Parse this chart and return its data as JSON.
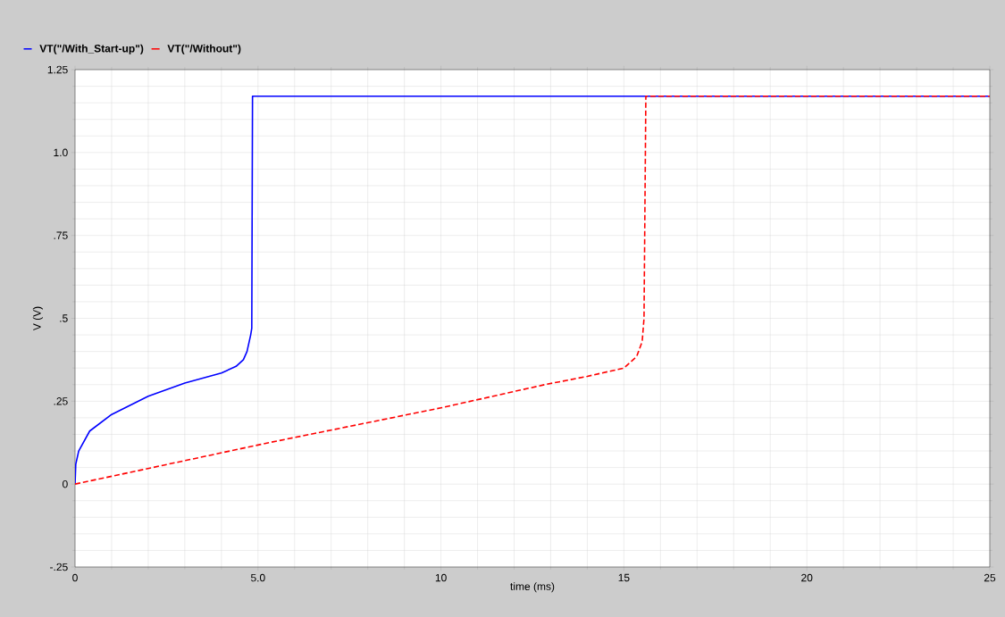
{
  "chart_data": {
    "type": "line",
    "xlabel": "time (ms)",
    "ylabel": "V (V)",
    "xlim": [
      0,
      25
    ],
    "ylim": [
      -0.25,
      1.25
    ],
    "xticks": [
      0,
      {
        "value": 5,
        "label": "5.0"
      },
      10,
      15,
      20,
      25
    ],
    "yticks": [
      {
        "value": -0.25,
        "label": "-.25"
      },
      0,
      {
        "value": 0.25,
        "label": ".25"
      },
      {
        "value": 0.5,
        "label": ".5"
      },
      {
        "value": 0.75,
        "label": ".75"
      },
      {
        "value": 1,
        "label": "1.0"
      },
      1.25
    ],
    "grid": true,
    "legend": "top left",
    "marker": "none",
    "series": [
      {
        "name": "VT(\"/With_Start-up\")",
        "color": "#0000ff",
        "line_style": "solid",
        "x": [
          0,
          0.02,
          0.1,
          0.4,
          1,
          2,
          3,
          4,
          4.4,
          4.6,
          4.7,
          4.8,
          4.83,
          4.85,
          25
        ],
        "values": [
          0,
          0.06,
          0.1,
          0.16,
          0.21,
          0.265,
          0.305,
          0.335,
          0.355,
          0.375,
          0.4,
          0.45,
          0.47,
          1.17,
          1.17
        ]
      },
      {
        "name": "VT(\"/Without\")",
        "color": "#ff0000",
        "line_style": "dashed",
        "x": [
          0,
          5.3,
          10,
          12.84,
          14,
          15,
          15.35,
          15.5,
          15.55,
          15.6,
          25
        ],
        "values": [
          0,
          0.125,
          0.23,
          0.3,
          0.325,
          0.35,
          0.385,
          0.43,
          0.5,
          1.17,
          1.17
        ]
      }
    ]
  }
}
